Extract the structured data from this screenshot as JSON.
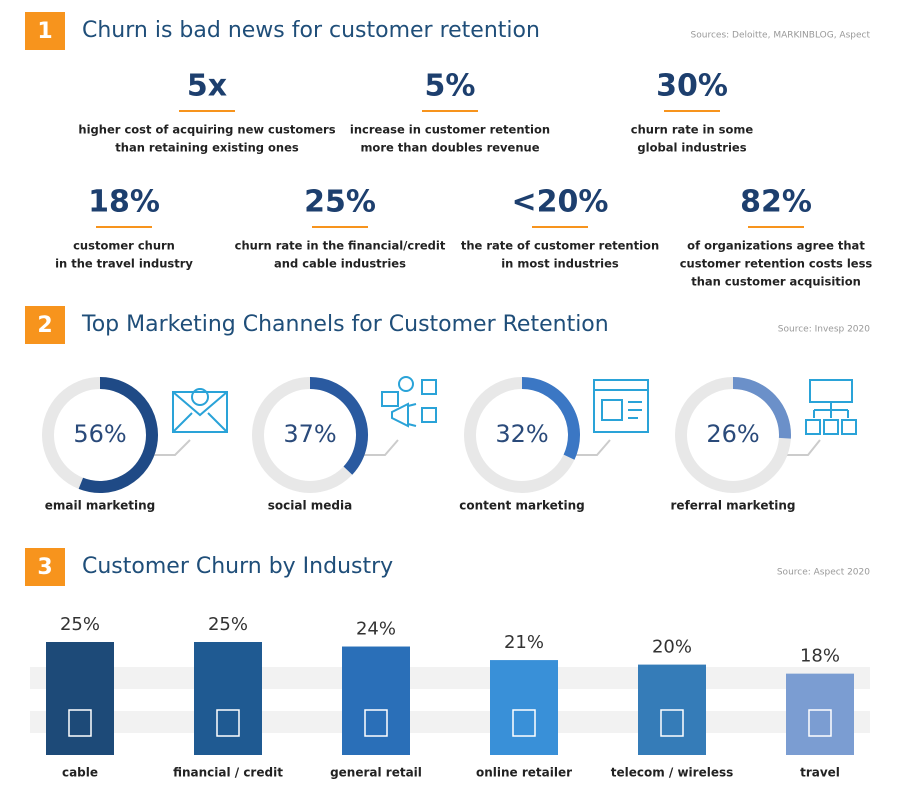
{
  "stats_section": {
    "number": "1",
    "title": "Churn is bad news for customer retention",
    "source": "Sources: Deloitte, MARKINBLOG, Aspect",
    "stats": [
      {
        "value": "5x",
        "label": [
          "higher cost of acquiring new customers",
          "than retaining existing ones"
        ]
      },
      {
        "value": "5%",
        "label": [
          "increase in customer retention",
          "more than doubles revenue"
        ]
      },
      {
        "value": "30%",
        "label": [
          "churn rate in some",
          "global industries"
        ]
      },
      {
        "value": "18%",
        "label": [
          "customer churn",
          "in the travel industry"
        ]
      },
      {
        "value": "25%",
        "label": [
          "churn rate in the financial/credit",
          "and cable industries"
        ]
      },
      {
        "value": "<20%",
        "label": [
          "the rate of customer retention",
          "in most industries"
        ]
      },
      {
        "value": "82%",
        "label": [
          "of organizations agree that",
          "customer retention costs less",
          "than customer acquisition"
        ]
      }
    ]
  },
  "chart_data": [
    {
      "type": "donut",
      "number": "2",
      "title": "Top Marketing Channels for Customer Retention",
      "source": "Source:  Invesp 2020",
      "categories": [
        "email marketing",
        "social media",
        "content marketing",
        "referral marketing"
      ],
      "values": [
        56,
        37,
        32,
        26
      ],
      "value_labels": [
        "56%",
        "37%",
        "32%",
        "26%"
      ],
      "colors": [
        "#1f4a86",
        "#2a5aa0",
        "#3b77c4",
        "#6b90c9"
      ]
    },
    {
      "type": "bar",
      "number": "3",
      "title": "Customer Churn by Industry",
      "source": "Source: Aspect 2020",
      "categories": [
        "cable",
        "financial / credit",
        "general retail",
        "online retailer",
        "telecom / wireless",
        "travel"
      ],
      "values": [
        25,
        25,
        24,
        21,
        20,
        18
      ],
      "value_labels": [
        "25%",
        "25%",
        "24%",
        "21%",
        "20%",
        "18%"
      ],
      "colors": [
        "#1d4a78",
        "#1f5a92",
        "#2a6fb8",
        "#3990d8",
        "#357cb8",
        "#7b9dd2"
      ]
    }
  ]
}
